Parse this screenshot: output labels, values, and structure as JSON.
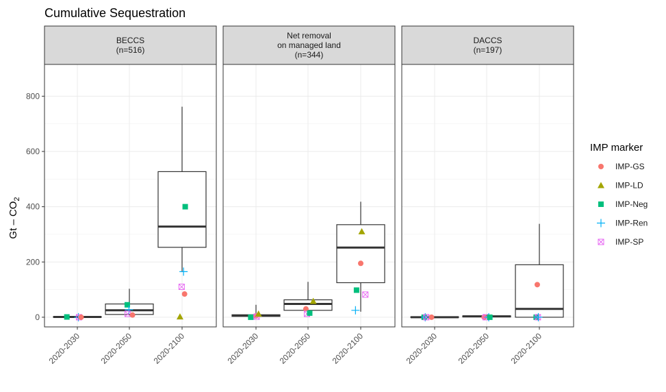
{
  "chart_data": {
    "type": "box",
    "title": "Cumulative Sequestration",
    "ylabel_main": "Gt – CO",
    "ylabel_sub": "2",
    "ylim": [
      -35,
      915
    ],
    "yticks": [
      0,
      200,
      400,
      600,
      800
    ],
    "categories": [
      "2020-2030",
      "2020-2050",
      "2020-2100"
    ],
    "grid": true,
    "legend": {
      "title": "IMP marker",
      "position": "right",
      "items": [
        {
          "name": "IMP-GS",
          "color": "#F8766D",
          "shape": "circle"
        },
        {
          "name": "IMP-LD",
          "color": "#A3A500",
          "shape": "triangle"
        },
        {
          "name": "IMP-Neg",
          "color": "#00BF7D",
          "shape": "square"
        },
        {
          "name": "IMP-Ren",
          "color": "#00B0F6",
          "shape": "plus"
        },
        {
          "name": "IMP-SP",
          "color": "#E76BF3",
          "shape": "boxx"
        }
      ]
    },
    "panels": [
      {
        "strip": [
          "BECCS",
          "(n=516)"
        ],
        "boxes": [
          {
            "category": "2020-2030",
            "min": 0,
            "q1": 0,
            "median": 1,
            "q3": 2,
            "max": 4
          },
          {
            "category": "2020-2050",
            "min": 8,
            "q1": 10,
            "median": 25,
            "q3": 48,
            "max": 103
          },
          {
            "category": "2020-2100",
            "min": 165,
            "q1": 253,
            "median": 328,
            "q3": 527,
            "max": 762
          }
        ],
        "markers": [
          {
            "category": "2020-2030",
            "marker": "IMP-Neg",
            "value": 1,
            "dx": -0.5
          },
          {
            "category": "2020-2030",
            "marker": "IMP-Ren",
            "value": 0,
            "dx": 0.05
          },
          {
            "category": "2020-2030",
            "marker": "IMP-SP",
            "value": 0,
            "dx": 0.08
          },
          {
            "category": "2020-2030",
            "marker": "IMP-GS",
            "value": 0,
            "dx": 0.18
          },
          {
            "category": "2020-2050",
            "marker": "IMP-Neg",
            "value": 45,
            "dx": -0.1
          },
          {
            "category": "2020-2050",
            "marker": "IMP-Ren",
            "value": 27,
            "dx": -0.02
          },
          {
            "category": "2020-2050",
            "marker": "IMP-SP",
            "value": 12,
            "dx": -0.08
          },
          {
            "category": "2020-2050",
            "marker": "IMP-GS",
            "value": 8,
            "dx": 0.15
          },
          {
            "category": "2020-2100",
            "marker": "IMP-Neg",
            "value": 400,
            "dx": 0.15
          },
          {
            "category": "2020-2100",
            "marker": "IMP-Ren",
            "value": 165,
            "dx": 0.07
          },
          {
            "category": "2020-2100",
            "marker": "IMP-SP",
            "value": 110,
            "dx": -0.02
          },
          {
            "category": "2020-2100",
            "marker": "IMP-GS",
            "value": 84,
            "dx": 0.12
          },
          {
            "category": "2020-2100",
            "marker": "IMP-LD",
            "value": 2,
            "dx": -0.1
          }
        ]
      },
      {
        "strip": [
          "Net removal",
          "on managed land",
          "(n=344)"
        ],
        "boxes": [
          {
            "category": "2020-2030",
            "min": 0,
            "q1": 3,
            "median": 6,
            "q3": 9,
            "max": 45
          },
          {
            "category": "2020-2050",
            "min": 8,
            "q1": 25,
            "median": 48,
            "q3": 63,
            "max": 128
          },
          {
            "category": "2020-2100",
            "min": 20,
            "q1": 125,
            "median": 252,
            "q3": 335,
            "max": 418
          }
        ],
        "markers": [
          {
            "category": "2020-2030",
            "marker": "IMP-Neg",
            "value": 0,
            "dx": -0.25
          },
          {
            "category": "2020-2030",
            "marker": "IMP-GS",
            "value": 5,
            "dx": 0.0
          },
          {
            "category": "2020-2030",
            "marker": "IMP-SP",
            "value": 2,
            "dx": 0.03
          },
          {
            "category": "2020-2030",
            "marker": "IMP-LD",
            "value": 12,
            "dx": 0.12
          },
          {
            "category": "2020-2050",
            "marker": "IMP-GS",
            "value": 30,
            "dx": -0.1
          },
          {
            "category": "2020-2050",
            "marker": "IMP-SP",
            "value": 12,
            "dx": -0.05
          },
          {
            "category": "2020-2050",
            "marker": "IMP-Neg",
            "value": 15,
            "dx": 0.08
          },
          {
            "category": "2020-2050",
            "marker": "IMP-LD",
            "value": 58,
            "dx": 0.25
          },
          {
            "category": "2020-2100",
            "marker": "IMP-LD",
            "value": 310,
            "dx": 0.05
          },
          {
            "category": "2020-2100",
            "marker": "IMP-GS",
            "value": 195,
            "dx": 0.0
          },
          {
            "category": "2020-2100",
            "marker": "IMP-Neg",
            "value": 98,
            "dx": -0.2
          },
          {
            "category": "2020-2100",
            "marker": "IMP-SP",
            "value": 82,
            "dx": 0.22
          },
          {
            "category": "2020-2100",
            "marker": "IMP-Ren",
            "value": 25,
            "dx": -0.25
          }
        ]
      },
      {
        "strip": [
          "DACCS",
          "(n=197)"
        ],
        "boxes": [
          {
            "category": "2020-2030",
            "min": 0,
            "q1": 0,
            "median": 0,
            "q3": 1,
            "max": 2
          },
          {
            "category": "2020-2050",
            "min": 0,
            "q1": 1,
            "median": 3,
            "q3": 5,
            "max": 8
          },
          {
            "category": "2020-2100",
            "min": 0,
            "q1": 0,
            "median": 30,
            "q3": 190,
            "max": 338
          }
        ],
        "markers": [
          {
            "category": "2020-2030",
            "marker": "IMP-Neg",
            "value": 0,
            "dx": -0.5
          },
          {
            "category": "2020-2030",
            "marker": "IMP-Ren",
            "value": 0,
            "dx": -0.45
          },
          {
            "category": "2020-2030",
            "marker": "IMP-SP",
            "value": 0,
            "dx": -0.4
          },
          {
            "category": "2020-2030",
            "marker": "IMP-GS",
            "value": 0,
            "dx": -0.15
          },
          {
            "category": "2020-2050",
            "marker": "IMP-GS",
            "value": 0,
            "dx": -0.12
          },
          {
            "category": "2020-2050",
            "marker": "IMP-SP",
            "value": 0,
            "dx": -0.05
          },
          {
            "category": "2020-2050",
            "marker": "IMP-Ren",
            "value": 0,
            "dx": 0.1
          },
          {
            "category": "2020-2050",
            "marker": "IMP-Neg",
            "value": 0,
            "dx": 0.15
          },
          {
            "category": "2020-2100",
            "marker": "IMP-GS",
            "value": 118,
            "dx": -0.1
          },
          {
            "category": "2020-2100",
            "marker": "IMP-Neg",
            "value": 0,
            "dx": -0.15
          },
          {
            "category": "2020-2100",
            "marker": "IMP-SP",
            "value": 0,
            "dx": -0.07
          },
          {
            "category": "2020-2100",
            "marker": "IMP-Ren",
            "value": 0,
            "dx": -0.05
          }
        ]
      }
    ]
  }
}
